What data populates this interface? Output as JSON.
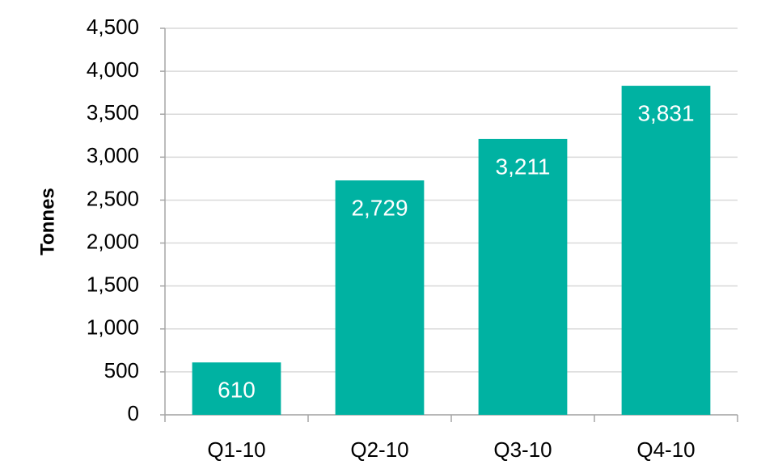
{
  "chart_data": {
    "type": "bar",
    "y_label": "Tonnes",
    "categories": [
      "Q1-10",
      "Q2-10",
      "Q3-10",
      "Q4-10"
    ],
    "values": [
      610,
      2729,
      3211,
      3831
    ],
    "value_labels": [
      "610",
      "2,729",
      "3,211",
      "3,831"
    ],
    "color": "#00b2a2",
    "ylim": [
      0,
      4500
    ],
    "yticks": [
      0,
      500,
      {
        "value": 1000,
        "label": "1,000"
      },
      {
        "value": 1500,
        "label": "1,500"
      },
      {
        "value": 2000,
        "label": "2,000"
      },
      {
        "value": 2500,
        "label": "2,500"
      },
      {
        "value": 3000,
        "label": "3,000"
      },
      {
        "value": 3500,
        "label": "3,500"
      },
      {
        "value": 4000,
        "label": "4,000"
      },
      {
        "value": 4500,
        "label": "4,500"
      }
    ],
    "grid": true
  }
}
